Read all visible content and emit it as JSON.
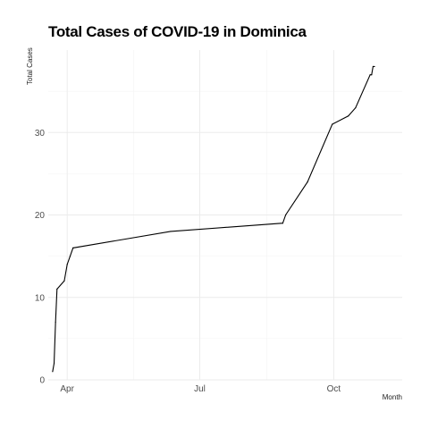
{
  "chart_data": {
    "type": "line",
    "title": "Total Cases of COVID-19 in Dominica",
    "xlabel": "Month",
    "ylabel": "Total Cases",
    "x_ticks": [
      {
        "label": "Apr",
        "date": "2020-04-01"
      },
      {
        "label": "Jul",
        "date": "2020-07-01"
      },
      {
        "label": "Oct",
        "date": "2020-10-01"
      }
    ],
    "y_ticks": [
      0,
      10,
      20,
      30
    ],
    "xlim": [
      "2020-03-19",
      "2020-11-17"
    ],
    "ylim": [
      0,
      40
    ],
    "grid": true,
    "series": [
      {
        "color": "#000000",
        "points": [
          {
            "x": "2020-03-22",
            "y": 1
          },
          {
            "x": "2020-03-23",
            "y": 2
          },
          {
            "x": "2020-03-24",
            "y": 7
          },
          {
            "x": "2020-03-25",
            "y": 11
          },
          {
            "x": "2020-03-30",
            "y": 12
          },
          {
            "x": "2020-04-01",
            "y": 14
          },
          {
            "x": "2020-04-03",
            "y": 15
          },
          {
            "x": "2020-04-05",
            "y": 16
          },
          {
            "x": "2020-06-11",
            "y": 18
          },
          {
            "x": "2020-08-27",
            "y": 19
          },
          {
            "x": "2020-08-29",
            "y": 20
          },
          {
            "x": "2020-09-13",
            "y": 24
          },
          {
            "x": "2020-09-30",
            "y": 31
          },
          {
            "x": "2020-10-11",
            "y": 32
          },
          {
            "x": "2020-10-16",
            "y": 33
          },
          {
            "x": "2020-10-26",
            "y": 37
          },
          {
            "x": "2020-10-27",
            "y": 37
          },
          {
            "x": "2020-10-28",
            "y": 38
          },
          {
            "x": "2020-10-29",
            "y": 38
          }
        ]
      }
    ]
  }
}
